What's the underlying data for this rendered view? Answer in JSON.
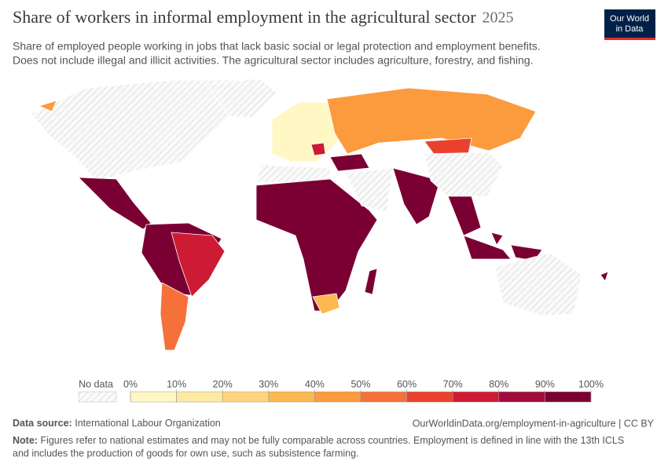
{
  "header": {
    "title": "Share of workers in informal employment in the agricultural sector",
    "year": "2025",
    "subtitle": [
      "Share of employed people working in jobs that lack basic social or legal protection and employment benefits.",
      "Does not include illegal and illicit activities. The agricultural sector includes agriculture, forestry, and fishing."
    ],
    "logo": [
      "Our World",
      "in Data"
    ]
  },
  "legend": {
    "no_data": "No data",
    "ticks": [
      {
        "value": 0,
        "label": "0%"
      },
      {
        "value": 10,
        "label": "10%"
      },
      {
        "value": 20,
        "label": "20%"
      },
      {
        "value": 30,
        "label": "30%"
      },
      {
        "value": 40,
        "label": "40%"
      },
      {
        "value": 50,
        "label": "50%"
      },
      {
        "value": 60,
        "label": "60%"
      },
      {
        "value": 70,
        "label": "70%"
      },
      {
        "value": 80,
        "label": "80%"
      },
      {
        "value": 90,
        "label": "90%"
      },
      {
        "value": 100,
        "label": "100%"
      }
    ],
    "colors": [
      "#fff8c4",
      "#fee9a0",
      "#fdd57a",
      "#fcb851",
      "#fc9a3e",
      "#f6703a",
      "#e9412e",
      "#cc1b33",
      "#a30b3a",
      "#7a0034"
    ]
  },
  "footer": {
    "source_label": "Data source:",
    "source": "International Labour Organization",
    "url": "OurWorldinData.org/employment-in-agriculture | CC BY",
    "note_label": "Note:",
    "note": [
      "Figures refer to national estimates and may not be fully comparable across countries. Employment is defined in line with the 13th ICLS",
      "and includes the production of goods for own use, such as subsistence farming."
    ]
  }
}
